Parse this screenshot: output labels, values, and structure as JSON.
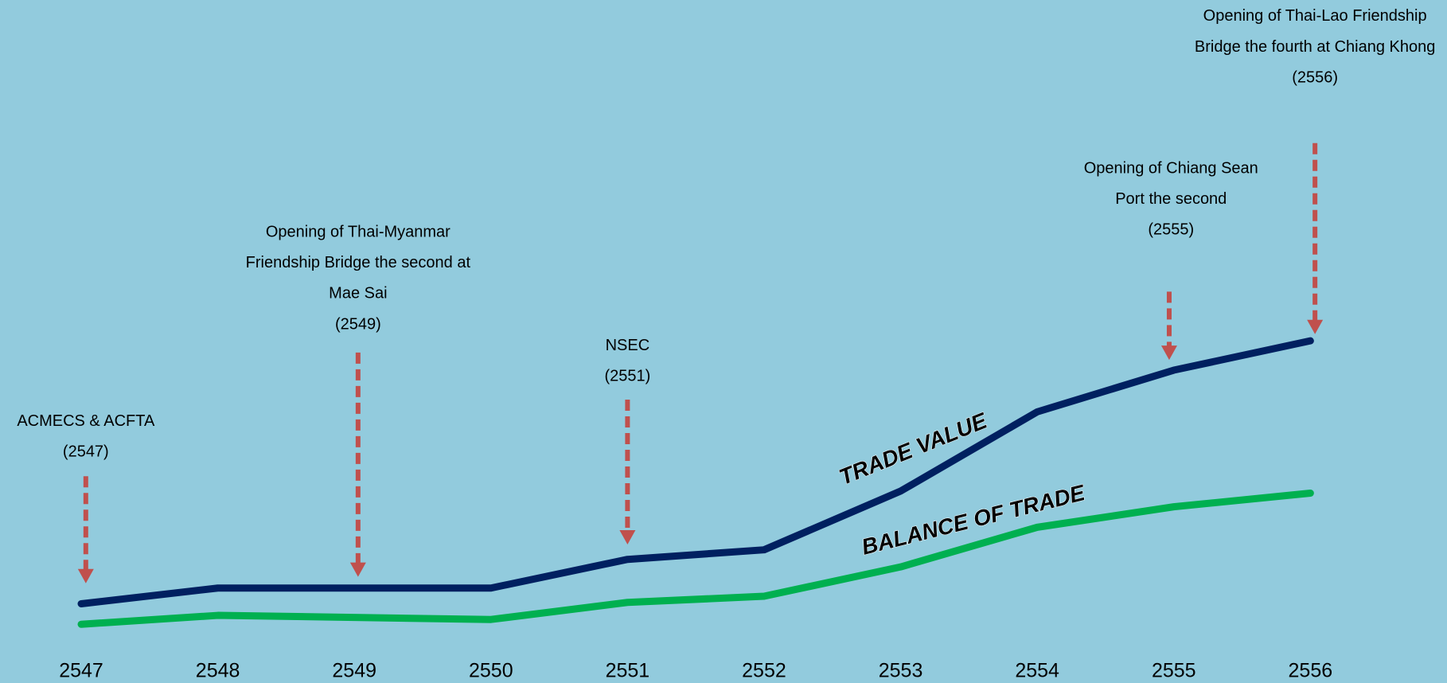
{
  "chart_data": {
    "type": "line",
    "categories": [
      "2547",
      "2548",
      "2549",
      "2550",
      "2551",
      "2552",
      "2553",
      "2554",
      "2555",
      "2556"
    ],
    "series": [
      {
        "name": "TRADE VALUE",
        "color": "#002060",
        "values": [
          11.6,
          13.9,
          13.9,
          13.9,
          18.1,
          19.5,
          28.1,
          39.7,
          45.8,
          50.1
        ]
      },
      {
        "name": "BALANCE OF TRADE",
        "color": "#00b050",
        "values": [
          8.6,
          9.9,
          9.6,
          9.3,
          11.8,
          12.7,
          17.0,
          22.8,
          25.8,
          27.8
        ]
      }
    ],
    "ylim": [
      0,
      100
    ],
    "annotations": [
      {
        "lines": [
          "ACMECS & ACFTA",
          "(2547)"
        ]
      },
      {
        "lines": [
          "Opening of Thai-Myanmar",
          "Friendship Bridge the second at",
          "Mae Sai",
          "(2549)"
        ]
      },
      {
        "lines": [
          "NSEC",
          "(2551)"
        ]
      },
      {
        "lines": [
          "Opening of Chiang Sean",
          "Port the second",
          "(2555)"
        ]
      },
      {
        "lines": [
          "Opening of Thai-Lao Friendship",
          "Bridge the fourth at Chiang Khong",
          "(2556)"
        ]
      }
    ]
  }
}
